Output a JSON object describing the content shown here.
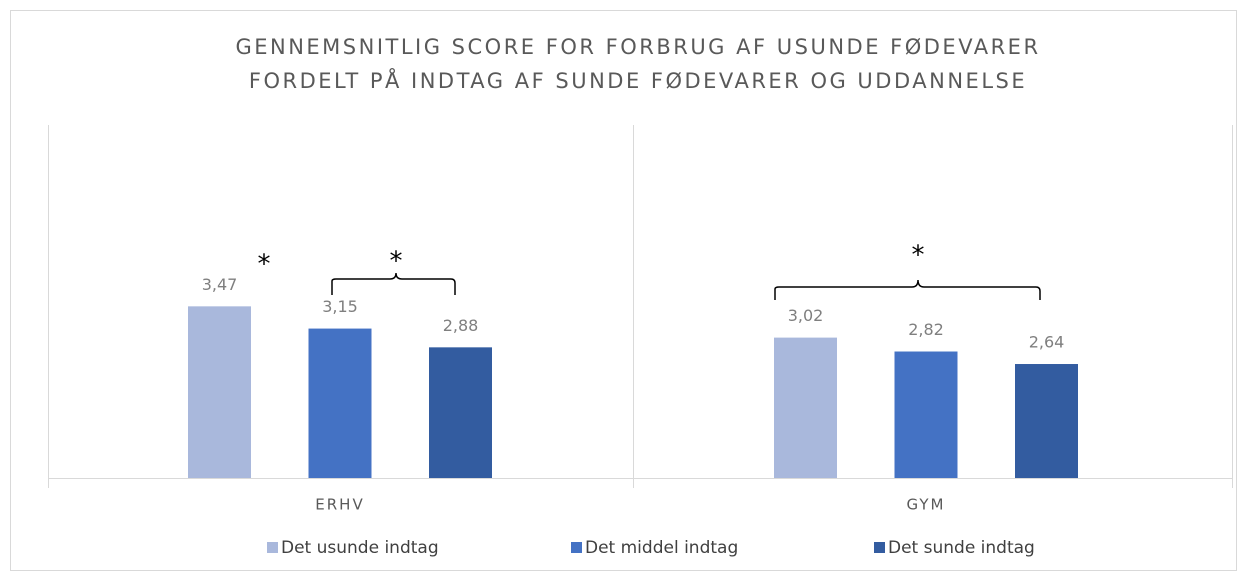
{
  "chart_data": {
    "type": "bar",
    "title": [
      "GENNEMSNITLIG SCORE FOR FORBRUG AF USUNDE FØDEVARER",
      "FORDELT PÅ INDTAG AF SUNDE FØDEVARER OG UDDANNELSE"
    ],
    "categories": [
      "ERHV",
      "GYM"
    ],
    "series": [
      {
        "name": "Det usunde indtag",
        "color": "#a9b8dc",
        "values": [
          3.47,
          3.02
        ],
        "value_labels": [
          "3,47",
          "3,02"
        ]
      },
      {
        "name": "Det middel indtag",
        "color": "#4472c4",
        "values": [
          3.15,
          2.82
        ],
        "value_labels": [
          "3,15",
          "2,82"
        ]
      },
      {
        "name": "Det sunde indtag",
        "color": "#335ca0",
        "values": [
          2.88,
          2.64
        ],
        "value_labels": [
          "2,88",
          "2,64"
        ]
      }
    ],
    "ylim": [
      1,
      4
    ],
    "annotations": [
      "*",
      "*",
      "*"
    ]
  }
}
